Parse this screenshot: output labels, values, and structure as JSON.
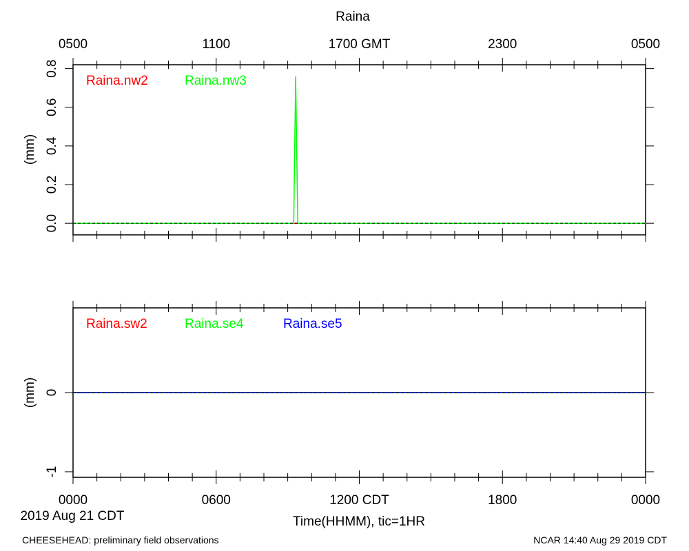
{
  "title": "Raina",
  "top_axis": {
    "tick_labels": [
      "0500",
      "1100",
      "1700 GMT",
      "2300",
      "0500"
    ]
  },
  "bottom_axis": {
    "tick_labels": [
      "0000",
      "0600",
      "1200 CDT",
      "1800",
      "0000"
    ],
    "date_label": "2019 Aug 21 CDT",
    "xlabel": "Time(HHMM), tic=1HR"
  },
  "footer": {
    "left": "CHEESEHEAD: preliminary field observations",
    "right": "NCAR 14:40 Aug 29 2019 CDT"
  },
  "chart_data": [
    {
      "type": "line",
      "xlabel": "Time(HHMM), tic=1HR",
      "ylabel": "(mm)",
      "xlim": [
        0,
        24
      ],
      "ylim": [
        -0.06,
        0.82
      ],
      "yticks": [
        0.0,
        0.2,
        0.4,
        0.6,
        0.8
      ],
      "ytick_labels": [
        "0.0",
        "0.2",
        "0.4",
        "0.6",
        "0.8"
      ],
      "grid": false,
      "legend_position": "top-left",
      "series": [
        {
          "name": "Raina.nw2",
          "color": "#ff0000",
          "x": [
            0,
            24
          ],
          "y": [
            0,
            0
          ]
        },
        {
          "name": "Raina.nw3",
          "color": "#00ff00",
          "x": [
            0,
            9.25,
            9.33,
            9.42,
            24
          ],
          "y": [
            0,
            0,
            0.76,
            0,
            0
          ]
        }
      ]
    },
    {
      "type": "line",
      "xlabel": "Time(HHMM), tic=1HR",
      "ylabel": "(mm)",
      "xlim": [
        0,
        24
      ],
      "ylim": [
        -1.07,
        1.07
      ],
      "yticks": [
        -1,
        0
      ],
      "ytick_labels": [
        "-1",
        "0"
      ],
      "grid": false,
      "legend_position": "top-left",
      "series": [
        {
          "name": "Raina.sw2",
          "color": "#ff0000",
          "x": [
            0,
            24
          ],
          "y": [
            0,
            0
          ]
        },
        {
          "name": "Raina.se4",
          "color": "#00ff00",
          "x": [
            0,
            24
          ],
          "y": [
            0,
            0
          ]
        },
        {
          "name": "Raina.se5",
          "color": "#0000ff",
          "x": [
            0,
            24
          ],
          "y": [
            0,
            0
          ]
        }
      ]
    }
  ]
}
